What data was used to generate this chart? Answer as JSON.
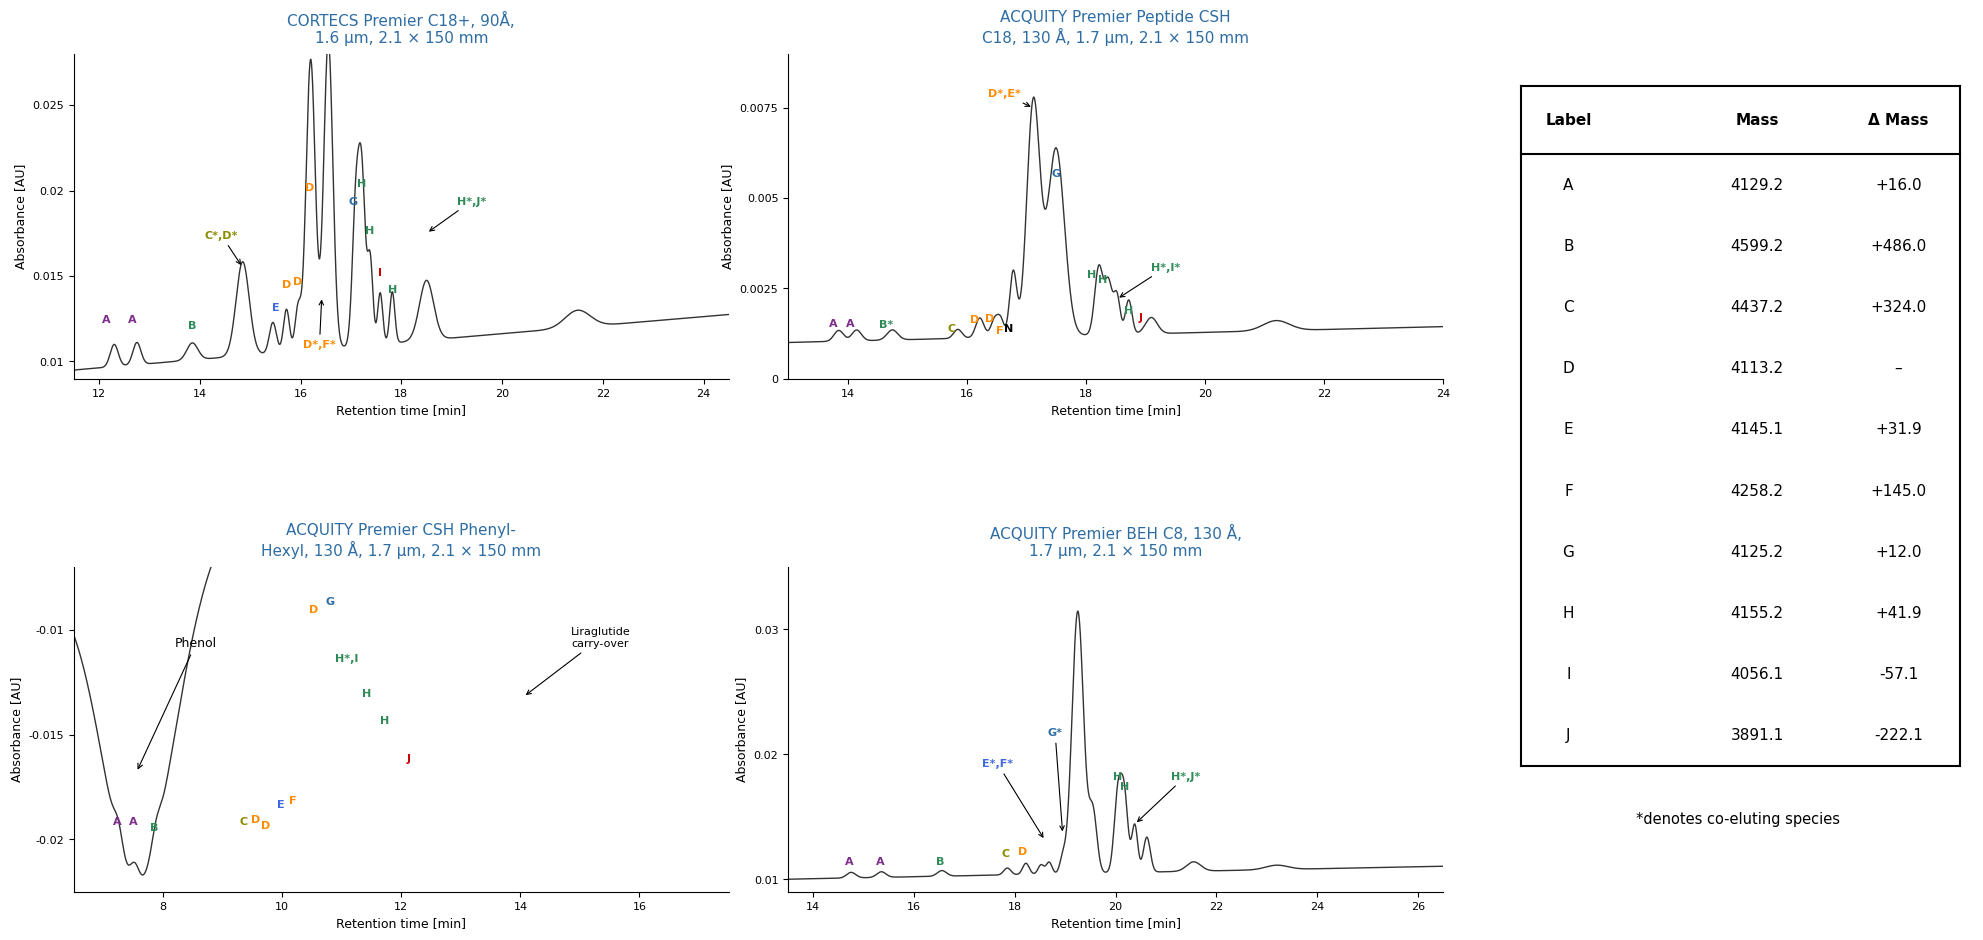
{
  "title_color": "#2E6DA4",
  "line_color": "#333333",
  "background": "white",
  "titles": [
    "CORTECS Premier C18+, 90Å,\n1.6 μm, 2.1 × 150 mm",
    "ACQUITY Premier Peptide CSH\nC18, 130 Å, 1.7 μm, 2.1 × 150 mm",
    "ACQUITY Premier CSH Phenyl-\nHexyl, 130 Å, 1.7 μm, 2.1 × 150 mm",
    "ACQUITY Premier BEH C8, 130 Å,\n1.7 μm, 2.1 × 150 mm"
  ],
  "xlabel": "Retention time [min]",
  "ylabel": "Absorbance [AU]",
  "table_labels": [
    "A",
    "B",
    "C",
    "D",
    "E",
    "F",
    "G",
    "H",
    "I",
    "J"
  ],
  "table_masses": [
    "4129.2",
    "4599.2",
    "4437.2",
    "4113.2",
    "4145.1",
    "4258.2",
    "4125.2",
    "4155.2",
    "4056.1",
    "3891.1"
  ],
  "table_delta": [
    "+16.0",
    "+486.0",
    "+324.0",
    "–",
    "+31.9",
    "+145.0",
    "+12.0",
    "+41.9",
    "-57.1",
    "-222.1"
  ],
  "footnote": "*denotes co-eluting species",
  "label_colors": {
    "A": "#7B2D8B",
    "B": "#2E8B57",
    "C": "#8B8B00",
    "D": "#FF8C00",
    "E": "#4169E1",
    "F": "#FF8C00",
    "G": "#2E6DA4",
    "H": "#2E8B57",
    "I": "#CC0000",
    "J": "#CC0000"
  }
}
